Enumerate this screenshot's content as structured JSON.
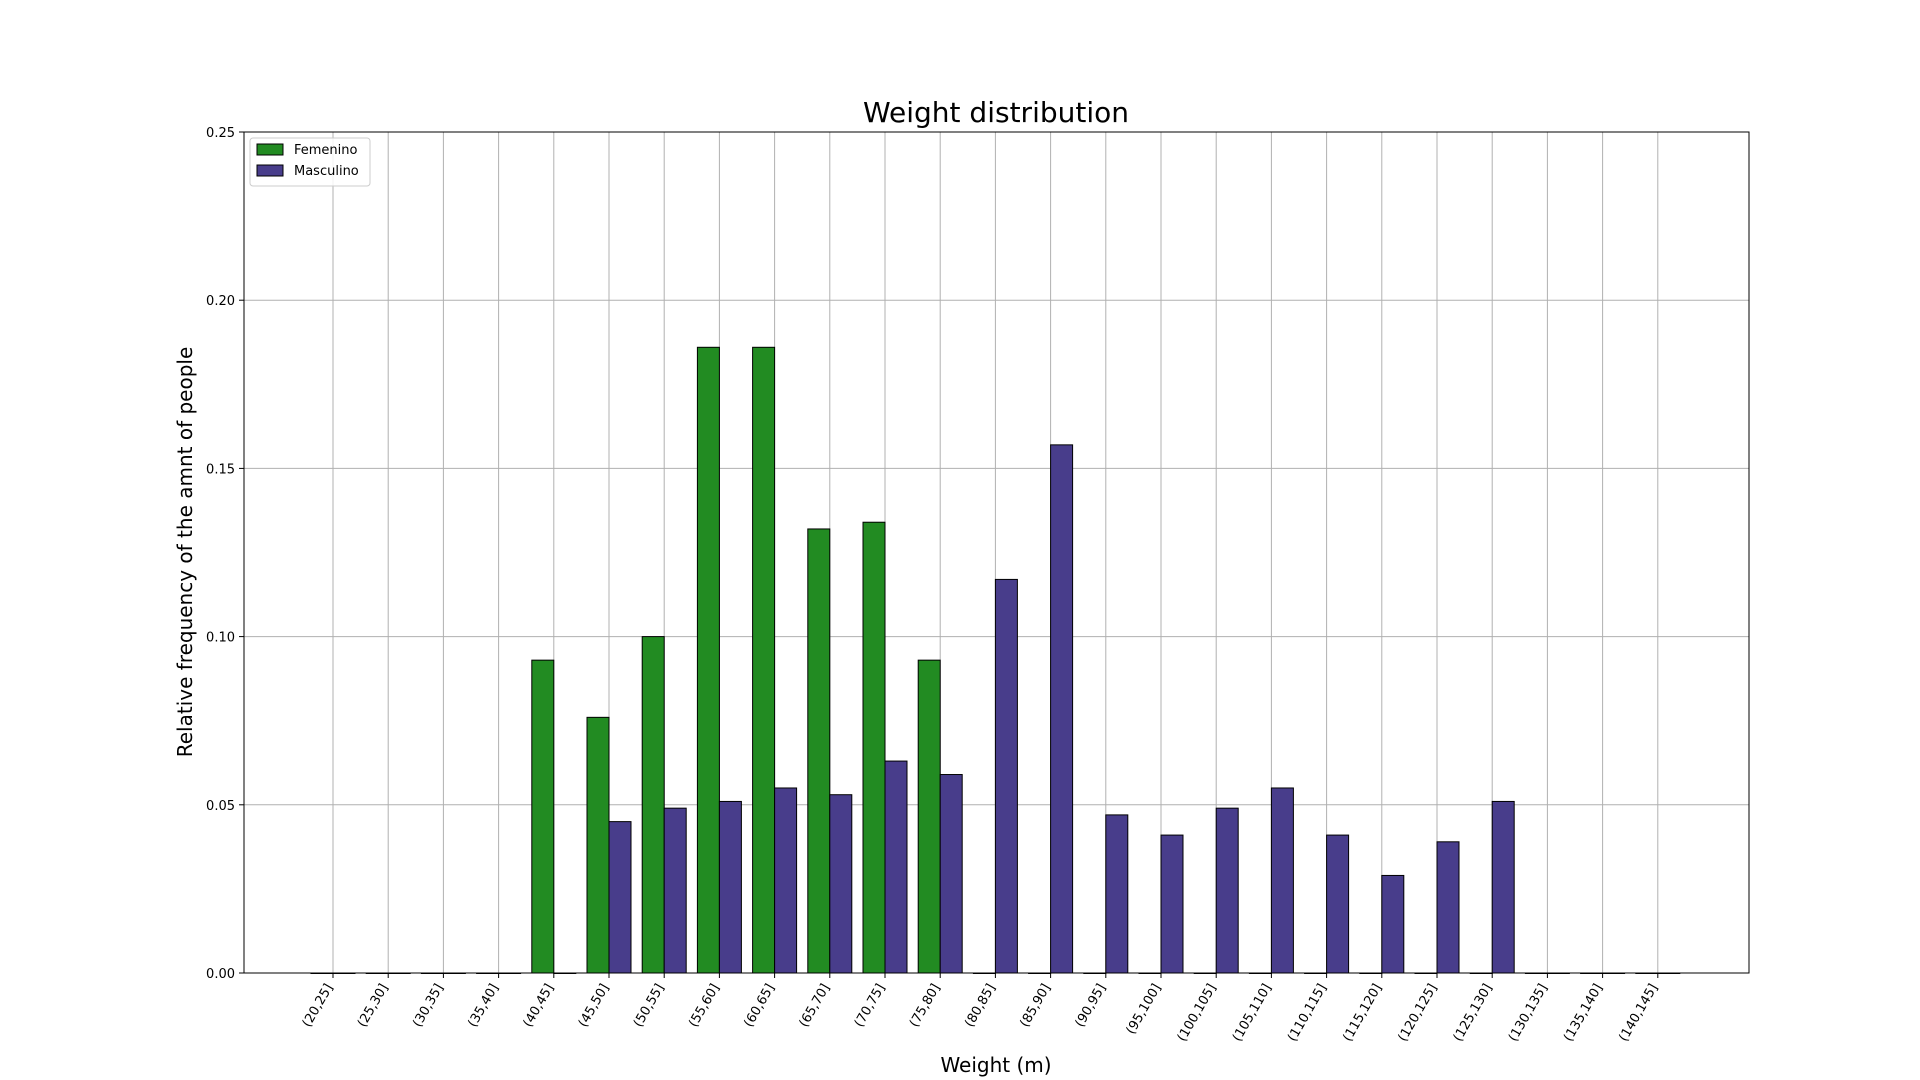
{
  "chart_data": {
    "type": "bar",
    "title": "Weight distribution",
    "xlabel": "Weight (m)",
    "ylabel": "Relative frequency of the amnt of people",
    "ylim": [
      0,
      0.25
    ],
    "yticks": [
      "0.00",
      "0.05",
      "0.10",
      "0.15",
      "0.20",
      "0.25"
    ],
    "grid": true,
    "legend_position": "top-left",
    "categories": [
      "(20,25]",
      "(25,30]",
      "(30,35]",
      "(35,40]",
      "(40,45]",
      "(45,50]",
      "(50,55]",
      "(55,60]",
      "(60,65]",
      "(65,70]",
      "(70,75]",
      "(75,80]",
      "(80,85]",
      "(85,90]",
      "(90,95]",
      "(95,100]",
      "(100,105]",
      "(105,110]",
      "(110,115]",
      "(115,120]",
      "(120,125]",
      "(125,130]",
      "(130,135]",
      "(135,140]",
      "(140,145]"
    ],
    "series": [
      {
        "name": "Femenino",
        "color": "#228b22",
        "values": [
          0,
          0,
          0,
          0,
          0.093,
          0.076,
          0.1,
          0.186,
          0.186,
          0.132,
          0.134,
          0.093,
          0,
          0,
          0,
          0,
          0,
          0,
          0,
          0,
          0,
          0,
          0,
          0,
          0
        ]
      },
      {
        "name": "Masculino",
        "color": "#483d8b",
        "values": [
          0,
          0,
          0,
          0,
          0,
          0.045,
          0.049,
          0.051,
          0.055,
          0.053,
          0.063,
          0.059,
          0.117,
          0.157,
          0.047,
          0.041,
          0.049,
          0.055,
          0.041,
          0.029,
          0.039,
          0.051,
          0,
          0,
          0
        ]
      }
    ]
  }
}
